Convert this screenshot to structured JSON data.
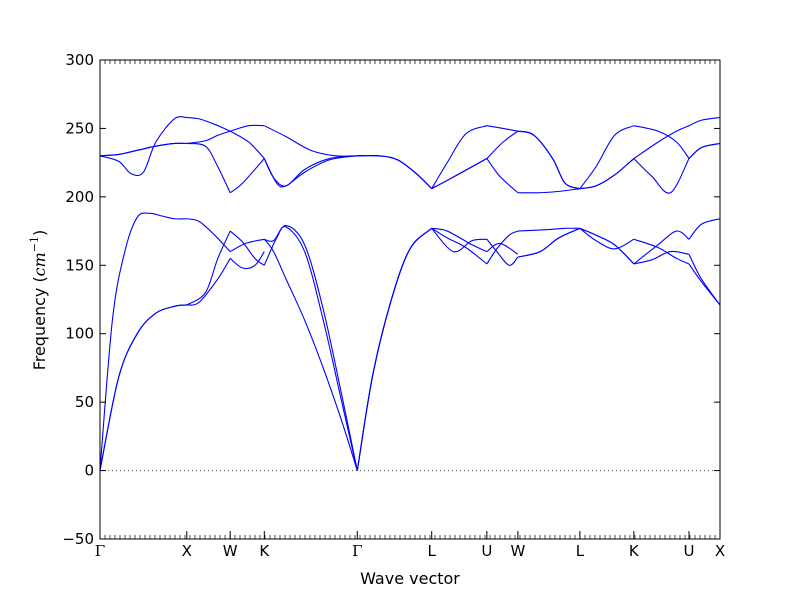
{
  "chart_data": {
    "type": "line",
    "title": "",
    "xlabel": "Wave vector",
    "ylabel_prefix": "Frequency (",
    "ylabel_unit": "cm",
    "ylabel_exp": "−1",
    "ylabel_suffix": ")",
    "ylim": [
      -50,
      300
    ],
    "yticks": [
      -50,
      0,
      50,
      100,
      150,
      200,
      250,
      300
    ],
    "yticklabels": [
      "−50",
      "0",
      "50",
      "100",
      "150",
      "200",
      "250",
      "300"
    ],
    "xlim": [
      0,
      1
    ],
    "kpoints": [
      {
        "label": "Γ",
        "x": 0.0,
        "font": "serif"
      },
      {
        "label": "X",
        "x": 0.14,
        "font": "sans"
      },
      {
        "label": "W",
        "x": 0.21,
        "font": "sans"
      },
      {
        "label": "K",
        "x": 0.265,
        "font": "sans"
      },
      {
        "label": "Γ",
        "x": 0.415,
        "font": "serif"
      },
      {
        "label": "L",
        "x": 0.535,
        "font": "sans"
      },
      {
        "label": "U",
        "x": 0.624,
        "font": "sans"
      },
      {
        "label": "W",
        "x": 0.674,
        "font": "sans"
      },
      {
        "label": "L",
        "x": 0.774,
        "font": "sans"
      },
      {
        "label": "K",
        "x": 0.861,
        "font": "sans"
      },
      {
        "label": "U",
        "x": 0.95,
        "font": "sans"
      },
      {
        "label": "X",
        "x": 1.0,
        "font": "sans"
      }
    ],
    "zero_line": {
      "y": 0,
      "style": "dotted"
    },
    "series_color": "#0000ff",
    "series": [
      {
        "x": [
          0,
          0.03,
          0.06,
          0.09,
          0.12,
          0.14
        ],
        "y": [
          0,
          68,
          100,
          115,
          120,
          121
        ]
      },
      {
        "x": [
          0,
          0.03,
          0.06,
          0.09,
          0.12,
          0.14
        ],
        "y": [
          0,
          68,
          100,
          115,
          120,
          121
        ]
      },
      {
        "x": [
          0,
          0.02,
          0.04,
          0.06,
          0.08,
          0.1,
          0.12,
          0.14
        ],
        "y": [
          0,
          110,
          160,
          185,
          188,
          186,
          184,
          184
        ]
      },
      {
        "x": [
          0,
          0.03,
          0.06,
          0.09,
          0.12,
          0.14
        ],
        "y": [
          230,
          231,
          234,
          237,
          239,
          239
        ]
      },
      {
        "x": [
          0,
          0.03,
          0.05,
          0.07,
          0.09,
          0.12,
          0.14
        ],
        "y": [
          230,
          226,
          217,
          218,
          240,
          257,
          258
        ]
      },
      {
        "x": [
          0,
          0.03,
          0.06,
          0.09,
          0.12,
          0.14
        ],
        "y": [
          230,
          231,
          234,
          237,
          239,
          239
        ]
      },
      {
        "x": [
          0.14,
          0.17,
          0.19,
          0.21
        ],
        "y": [
          121,
          130,
          155,
          175
        ]
      },
      {
        "x": [
          0.14,
          0.16,
          0.19,
          0.21
        ],
        "y": [
          121,
          123,
          140,
          155
        ]
      },
      {
        "x": [
          0.14,
          0.16,
          0.185,
          0.21
        ],
        "y": [
          184,
          182,
          172,
          160
        ]
      },
      {
        "x": [
          0.14,
          0.17,
          0.19,
          0.21
        ],
        "y": [
          239,
          237,
          222,
          203
        ]
      },
      {
        "x": [
          0.14,
          0.17,
          0.19,
          0.21
        ],
        "y": [
          239,
          241,
          245,
          248
        ]
      },
      {
        "x": [
          0.14,
          0.16,
          0.185,
          0.21
        ],
        "y": [
          258,
          257,
          253,
          248
        ]
      },
      {
        "x": [
          0.21,
          0.23,
          0.25,
          0.265
        ],
        "y": [
          175,
          167,
          155,
          150
        ]
      },
      {
        "x": [
          0.21,
          0.23,
          0.25,
          0.265
        ],
        "y": [
          155,
          148,
          150,
          160
        ]
      },
      {
        "x": [
          0.21,
          0.235,
          0.265
        ],
        "y": [
          160,
          166,
          169
        ]
      },
      {
        "x": [
          0.21,
          0.23,
          0.265
        ],
        "y": [
          203,
          210,
          228
        ]
      },
      {
        "x": [
          0.21,
          0.24,
          0.265
        ],
        "y": [
          248,
          252,
          252
        ]
      },
      {
        "x": [
          0.21,
          0.24,
          0.265
        ],
        "y": [
          248,
          240,
          228
        ]
      },
      {
        "x": [
          0.265,
          0.285,
          0.3,
          0.33,
          0.36,
          0.39,
          0.415
        ],
        "y": [
          150,
          170,
          178,
          160,
          110,
          50,
          0
        ]
      },
      {
        "x": [
          0.265,
          0.28,
          0.3,
          0.33,
          0.36,
          0.39,
          0.415
        ],
        "y": [
          169,
          160,
          140,
          110,
          75,
          36,
          0
        ]
      },
      {
        "x": [
          0.265,
          0.28,
          0.3,
          0.33,
          0.36,
          0.39,
          0.415
        ],
        "y": [
          169,
          168,
          179,
          165,
          118,
          55,
          0
        ]
      },
      {
        "x": [
          0.265,
          0.285,
          0.3,
          0.33,
          0.37,
          0.415
        ],
        "y": [
          228,
          210,
          208,
          218,
          227,
          230
        ]
      },
      {
        "x": [
          0.265,
          0.3,
          0.34,
          0.38,
          0.415
        ],
        "y": [
          252,
          244,
          234,
          230,
          230
        ]
      },
      {
        "x": [
          0.265,
          0.28,
          0.3,
          0.33,
          0.37,
          0.415
        ],
        "y": [
          228,
          214,
          208,
          220,
          228,
          230
        ]
      },
      {
        "x": [
          0.415,
          0.44,
          0.47,
          0.5,
          0.535
        ],
        "y": [
          0,
          70,
          125,
          162,
          177
        ]
      },
      {
        "x": [
          0.415,
          0.44,
          0.47,
          0.5,
          0.535
        ],
        "y": [
          0,
          70,
          125,
          162,
          177
        ]
      },
      {
        "x": [
          0.415,
          0.44,
          0.47,
          0.5,
          0.535
        ],
        "y": [
          0,
          70,
          125,
          162,
          177
        ]
      },
      {
        "x": [
          0.415,
          0.45,
          0.48,
          0.51,
          0.535
        ],
        "y": [
          230,
          230,
          227,
          217,
          206
        ]
      },
      {
        "x": [
          0.415,
          0.45,
          0.48,
          0.51,
          0.535
        ],
        "y": [
          230,
          230,
          227,
          217,
          206
        ]
      },
      {
        "x": [
          0.415,
          0.45,
          0.48,
          0.51,
          0.535
        ],
        "y": [
          230,
          230,
          227,
          217,
          206
        ]
      },
      {
        "x": [
          0.535,
          0.56,
          0.59,
          0.624
        ],
        "y": [
          177,
          170,
          163,
          151
        ]
      },
      {
        "x": [
          0.535,
          0.56,
          0.6,
          0.624
        ],
        "y": [
          177,
          175,
          165,
          160
        ]
      },
      {
        "x": [
          0.535,
          0.57,
          0.6,
          0.624
        ],
        "y": [
          177,
          160,
          168,
          169
        ]
      },
      {
        "x": [
          0.535,
          0.56,
          0.6,
          0.624
        ],
        "y": [
          206,
          212,
          222,
          228
        ]
      },
      {
        "x": [
          0.535,
          0.56,
          0.59,
          0.624
        ],
        "y": [
          206,
          225,
          246,
          252
        ]
      },
      {
        "x": [
          0.535,
          0.56,
          0.6,
          0.624
        ],
        "y": [
          206,
          212,
          222,
          228
        ]
      },
      {
        "x": [
          0.624,
          0.64,
          0.66,
          0.674
        ],
        "y": [
          151,
          162,
          172,
          175
        ]
      },
      {
        "x": [
          0.624,
          0.64,
          0.66,
          0.674
        ],
        "y": [
          169,
          160,
          150,
          156
        ]
      },
      {
        "x": [
          0.624,
          0.645,
          0.674
        ],
        "y": [
          160,
          166,
          158
        ]
      },
      {
        "x": [
          0.624,
          0.65,
          0.674
        ],
        "y": [
          228,
          240,
          248
        ]
      },
      {
        "x": [
          0.624,
          0.65,
          0.674
        ],
        "y": [
          252,
          250,
          248
        ]
      },
      {
        "x": [
          0.624,
          0.645,
          0.674
        ],
        "y": [
          228,
          215,
          203
        ]
      },
      {
        "x": [
          0.674,
          0.72,
          0.75,
          0.774
        ],
        "y": [
          175,
          176,
          177,
          177
        ]
      },
      {
        "x": [
          0.674,
          0.71,
          0.74,
          0.774
        ],
        "y": [
          156,
          160,
          170,
          177
        ]
      },
      {
        "x": [
          0.674,
          0.71,
          0.74,
          0.774
        ],
        "y": [
          156,
          160,
          170,
          177
        ]
      },
      {
        "x": [
          0.674,
          0.71,
          0.74,
          0.774
        ],
        "y": [
          203,
          203,
          204,
          206
        ]
      },
      {
        "x": [
          0.674,
          0.7,
          0.73,
          0.75,
          0.774
        ],
        "y": [
          248,
          245,
          228,
          210,
          206
        ]
      },
      {
        "x": [
          0.674,
          0.7,
          0.73,
          0.75,
          0.774
        ],
        "y": [
          248,
          245,
          228,
          210,
          206
        ]
      },
      {
        "x": [
          0.774,
          0.8,
          0.83,
          0.861
        ],
        "y": [
          177,
          168,
          162,
          169
        ]
      },
      {
        "x": [
          0.774,
          0.8,
          0.83,
          0.861
        ],
        "y": [
          177,
          172,
          165,
          151
        ]
      },
      {
        "x": [
          0.774,
          0.8,
          0.83,
          0.861
        ],
        "y": [
          177,
          172,
          165,
          151
        ]
      },
      {
        "x": [
          0.774,
          0.8,
          0.83,
          0.861
        ],
        "y": [
          206,
          208,
          216,
          228
        ]
      },
      {
        "x": [
          0.774,
          0.8,
          0.83,
          0.861
        ],
        "y": [
          206,
          222,
          245,
          252
        ]
      },
      {
        "x": [
          0.774,
          0.8,
          0.83,
          0.861
        ],
        "y": [
          206,
          208,
          216,
          228
        ]
      },
      {
        "x": [
          0.861,
          0.9,
          0.93,
          0.95
        ],
        "y": [
          151,
          165,
          175,
          169
        ]
      },
      {
        "x": [
          0.861,
          0.9,
          0.93,
          0.95
        ],
        "y": [
          169,
          163,
          155,
          151
        ]
      },
      {
        "x": [
          0.861,
          0.89,
          0.92,
          0.95
        ],
        "y": [
          151,
          154,
          160,
          158
        ]
      },
      {
        "x": [
          0.861,
          0.89,
          0.92,
          0.95
        ],
        "y": [
          228,
          215,
          203,
          228
        ]
      },
      {
        "x": [
          0.861,
          0.9,
          0.93,
          0.95
        ],
        "y": [
          252,
          248,
          240,
          228
        ]
      },
      {
        "x": [
          0.861,
          0.9,
          0.93,
          0.95
        ],
        "y": [
          228,
          240,
          248,
          252
        ]
      },
      {
        "x": [
          0.95,
          0.97,
          1.0
        ],
        "y": [
          169,
          180,
          184
        ]
      },
      {
        "x": [
          0.95,
          0.97,
          1.0
        ],
        "y": [
          151,
          138,
          121
        ]
      },
      {
        "x": [
          0.95,
          0.97,
          1.0
        ],
        "y": [
          158,
          140,
          121
        ]
      },
      {
        "x": [
          0.95,
          0.97,
          1.0
        ],
        "y": [
          228,
          236,
          239
        ]
      },
      {
        "x": [
          0.95,
          0.97,
          1.0
        ],
        "y": [
          252,
          256,
          258
        ]
      },
      {
        "x": [
          0.95,
          0.97,
          1.0
        ],
        "y": [
          228,
          236,
          239
        ]
      }
    ]
  }
}
